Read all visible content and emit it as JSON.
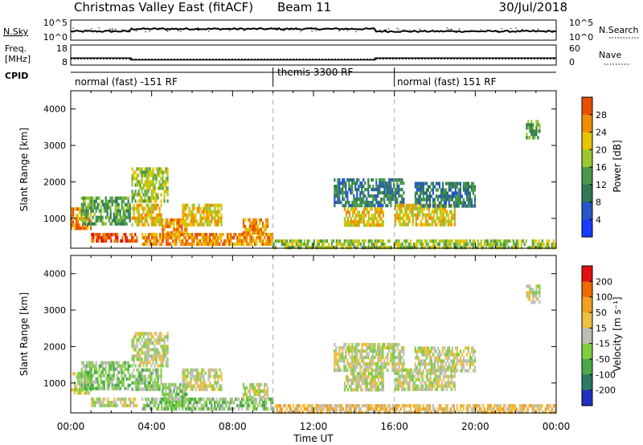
{
  "header": {
    "title": "Christmas Valley East (fitACF)",
    "beam": "Beam 11",
    "date": "30/Jul/2018"
  },
  "noise_panel": {
    "left_label": "N.Sky",
    "left_ticks": [
      "10^5",
      "10^0"
    ],
    "right_ticks": [
      "10^5",
      "10^0"
    ],
    "right_label": "N.Search"
  },
  "freq_panel": {
    "left_label_1": "Freq.",
    "left_label_2": "[MHz]",
    "left_ticks": [
      18,
      8
    ],
    "right_ticks": [
      60,
      0
    ],
    "right_label": "Nave",
    "freq_steps": [
      {
        "t0": 0.0,
        "t1": 2.98,
        "value": 11.5
      },
      {
        "t0": 2.98,
        "t1": 15.05,
        "value": 10.6
      },
      {
        "t0": 15.05,
        "t1": 24.0,
        "value": 11.5
      }
    ],
    "nave_level": 11.0
  },
  "cpid": {
    "label": "CPID",
    "segments": [
      {
        "start": 0,
        "end": 10,
        "text": "normal (fast) -151 RF"
      },
      {
        "start": 10,
        "end": 16,
        "text": "themis 3300 RF"
      },
      {
        "start": 16,
        "end": 24,
        "text": "normal (fast) 151 RF"
      }
    ]
  },
  "power_panel": {
    "ylabel": "Slant Range [km]",
    "cbar_label": "Power [dB]",
    "cbar_ticks": [
      28,
      24,
      20,
      16,
      12,
      8,
      4
    ]
  },
  "velocity_panel": {
    "ylabel": "Slant Range [km]",
    "cbar_label": "Velocity [m s⁻¹]",
    "cbar_ticks": [
      "200",
      "100",
      "50",
      "15",
      "-15",
      "-50",
      "-100",
      "-200"
    ]
  },
  "xaxis": {
    "label": "Time UT",
    "ticks": [
      "00:00",
      "04:00",
      "08:00",
      "12:00",
      "16:00",
      "20:00",
      "00:00"
    ]
  },
  "chart_data": {
    "type": "heatmap",
    "x_range_hours": [
      0,
      24
    ],
    "y_range_km": [
      180,
      4500
    ],
    "y_ticks_km": [
      1000,
      2000,
      3000,
      4000
    ],
    "x_tick_hours": [
      0,
      4,
      8,
      12,
      16,
      20,
      24
    ],
    "vlines_hours": [
      10,
      16
    ],
    "power_colors": [
      "#1a3cff",
      "#2855c8",
      "#2f7a55",
      "#4a9a4a",
      "#9ac830",
      "#e6c400",
      "#f08c00",
      "#e85000",
      "#e01010"
    ],
    "velocity_colors": [
      "#2030c0",
      "#2c7a66",
      "#4aa84a",
      "#7ed040",
      "#bebeb6",
      "#f0c040",
      "#f0a020",
      "#ef6a00",
      "#e01010"
    ],
    "echo_regions": [
      {
        "t0": 0.0,
        "t1": 1.0,
        "r0": 700,
        "r1": 1300,
        "power_level": 6,
        "velocity_level": 4
      },
      {
        "t0": 0.5,
        "t1": 3.0,
        "r0": 800,
        "r1": 1600,
        "power_level": 3,
        "velocity_level": 3
      },
      {
        "t0": 1.0,
        "t1": 3.3,
        "r0": 300,
        "r1": 600,
        "power_level": 7,
        "velocity_level": 4
      },
      {
        "t0": 3.0,
        "t1": 4.8,
        "r0": 1400,
        "r1": 2400,
        "power_level": 4,
        "velocity_level": 4
      },
      {
        "t0": 3.0,
        "t1": 4.5,
        "r0": 800,
        "r1": 1400,
        "power_level": 5,
        "velocity_level": 3
      },
      {
        "t0": 4.5,
        "t1": 5.8,
        "r0": 500,
        "r1": 1000,
        "power_level": 6,
        "velocity_level": 3
      },
      {
        "t0": 5.5,
        "t1": 7.5,
        "r0": 800,
        "r1": 1400,
        "power_level": 5,
        "velocity_level": 4
      },
      {
        "t0": 3.5,
        "t1": 10.0,
        "r0": 250,
        "r1": 600,
        "power_level": 6,
        "velocity_level": 3
      },
      {
        "t0": 8.5,
        "t1": 9.8,
        "r0": 600,
        "r1": 1000,
        "power_level": 6,
        "velocity_level": 4
      },
      {
        "t0": 10.0,
        "t1": 24.0,
        "r0": 180,
        "r1": 420,
        "power_level": 4,
        "velocity_level": 5
      },
      {
        "t0": 13.0,
        "t1": 16.5,
        "r0": 1300,
        "r1": 2100,
        "power_level": 2,
        "velocity_level": 4
      },
      {
        "t0": 13.5,
        "t1": 15.5,
        "r0": 800,
        "r1": 1300,
        "power_level": 5,
        "velocity_level": 4
      },
      {
        "t0": 16.0,
        "t1": 19.0,
        "r0": 800,
        "r1": 1400,
        "power_level": 5,
        "velocity_level": 4
      },
      {
        "t0": 17.0,
        "t1": 20.0,
        "r0": 1300,
        "r1": 2000,
        "power_level": 2,
        "velocity_level": 4
      },
      {
        "t0": 22.5,
        "t1": 23.2,
        "r0": 3200,
        "r1": 3700,
        "power_level": 3,
        "velocity_level": 4
      }
    ]
  }
}
